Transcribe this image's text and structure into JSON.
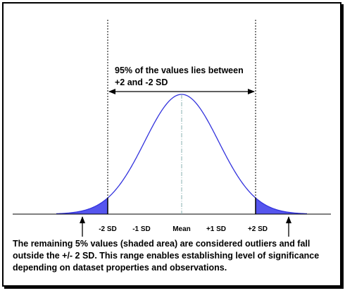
{
  "annotation_top": {
    "line1": "95% of the values lies between",
    "line2": "+2 and -2 SD"
  },
  "axis_labels": [
    "-2 SD",
    "-1 SD",
    "Mean",
    "+1 SD",
    "+2 SD"
  ],
  "caption": "The remaining 5% values (shaded area) are considered outliers and fall outside the +/- 2 SD. This range enables establishing level of significance depending on dataset properties and observations.",
  "colors": {
    "shade": "#5555ee",
    "curve": "#3333dd",
    "mean_line": "#88b0b0"
  }
}
